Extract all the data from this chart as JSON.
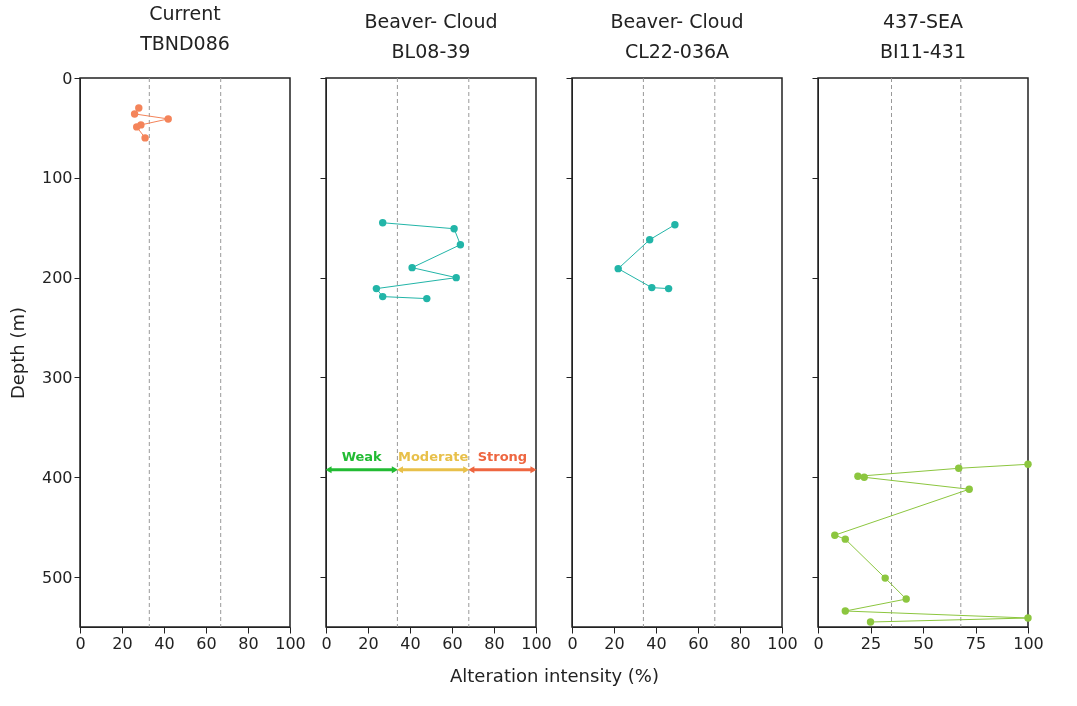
{
  "chart_data": [
    {
      "type": "line",
      "title": "Current",
      "subtitle": "TBND086",
      "ylabel": "Depth (m)",
      "marker": "circle",
      "grid": false,
      "legend": false,
      "xlim": [
        0,
        100
      ],
      "xticks": [
        0,
        20,
        40,
        60,
        80,
        100
      ],
      "ylim": [
        550,
        0
      ],
      "yticks": [
        0,
        100,
        200,
        300,
        400,
        500
      ],
      "ref_lines": [
        {
          "axis": "x",
          "value": 33,
          "label": null,
          "color": "#999999",
          "line_style": "dashed"
        },
        {
          "axis": "x",
          "value": 67,
          "label": null,
          "color": "#999999",
          "line_style": "dashed"
        }
      ],
      "series": [
        {
          "color": "#f4845a",
          "x": [
            28,
            26,
            42,
            29,
            27,
            31
          ],
          "values": [
            30,
            36,
            41,
            47,
            49,
            60
          ]
        }
      ]
    },
    {
      "type": "line",
      "title": "Beaver- Cloud",
      "subtitle": "BL08-39",
      "marker": "circle",
      "grid": false,
      "legend": false,
      "tick_labels": "x",
      "xlim": [
        0,
        100
      ],
      "xticks": [
        0,
        20,
        40,
        60,
        80,
        100
      ],
      "ylim": [
        550,
        0
      ],
      "yticks": [
        0,
        100,
        200,
        300,
        400,
        500
      ],
      "ref_lines": [
        {
          "axis": "x",
          "value": 34,
          "label": null,
          "color": "#999999",
          "line_style": "dashed"
        },
        {
          "axis": "x",
          "value": 68,
          "label": null,
          "color": "#999999",
          "line_style": "dashed"
        }
      ],
      "xlabel": "Alteration intensity (%)",
      "annotations": [
        "Weak",
        "Moderate",
        "Strong"
      ],
      "series": [
        {
          "color": "#22b5a8",
          "x": [
            27,
            61,
            64,
            41,
            62,
            24,
            27,
            48
          ],
          "values": [
            145,
            151,
            167,
            190,
            200,
            211,
            219,
            221
          ]
        }
      ]
    },
    {
      "type": "line",
      "title": "Beaver- Cloud",
      "subtitle": "CL22-036A",
      "marker": "circle",
      "grid": false,
      "legend": false,
      "tick_labels": "x",
      "xlim": [
        0,
        100
      ],
      "xticks": [
        0,
        20,
        40,
        60,
        80,
        100
      ],
      "ylim": [
        550,
        0
      ],
      "yticks": [
        0,
        100,
        200,
        300,
        400,
        500
      ],
      "ref_lines": [
        {
          "axis": "x",
          "value": 34,
          "label": null,
          "color": "#999999",
          "line_style": "dashed"
        },
        {
          "axis": "x",
          "value": 68,
          "label": null,
          "color": "#999999",
          "line_style": "dashed"
        }
      ],
      "series": [
        {
          "color": "#22b5a8",
          "x": [
            49,
            37,
            22,
            38,
            46
          ],
          "values": [
            147,
            162,
            191,
            210,
            211
          ]
        }
      ]
    },
    {
      "type": "line",
      "title": "437-SEA",
      "subtitle": "BI11-431",
      "marker": "circle",
      "grid": false,
      "legend": false,
      "tick_labels": "x",
      "xlim": [
        0,
        100
      ],
      "xticks": [
        0,
        25,
        50,
        75,
        100
      ],
      "ylim": [
        550,
        0
      ],
      "yticks": [
        0,
        100,
        200,
        300,
        400,
        500
      ],
      "ref_lines": [
        {
          "axis": "x",
          "value": 35,
          "label": null,
          "color": "#999999",
          "line_style": "dashed"
        },
        {
          "axis": "x",
          "value": 68,
          "label": null,
          "color": "#999999",
          "line_style": "dashed"
        }
      ],
      "series": [
        {
          "color": "#8cc63f",
          "x": [
            100,
            67,
            19,
            22,
            72,
            8,
            13,
            32,
            42,
            13,
            100,
            25
          ],
          "values": [
            387,
            391,
            399,
            400,
            412,
            458,
            462,
            501,
            522,
            534,
            541,
            545
          ]
        }
      ]
    }
  ]
}
